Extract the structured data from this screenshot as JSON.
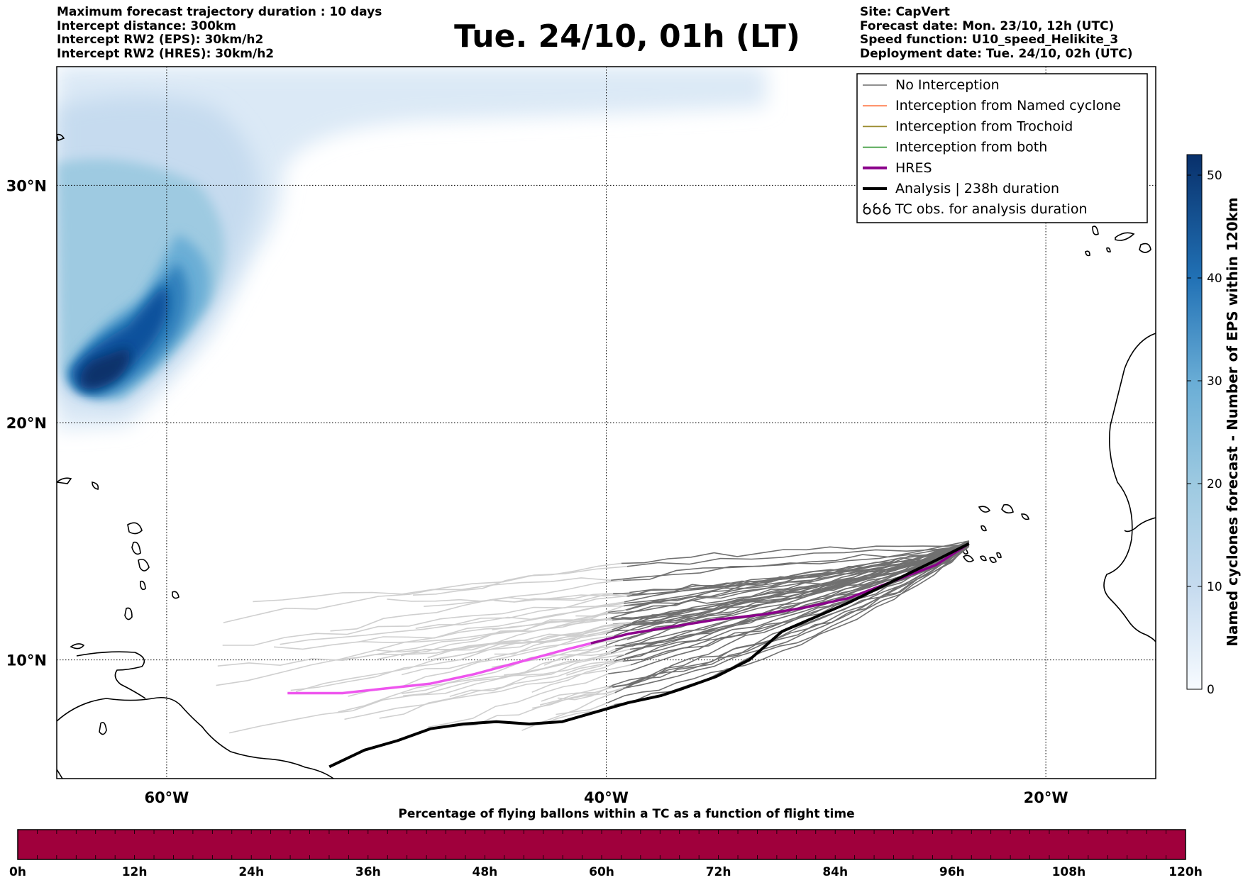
{
  "header_left": [
    "Maximum forecast trajectory duration : 10 days",
    "Intercept distance: 300km",
    "Intercept RW2 (EPS):  30km/h2",
    "Intercept RW2 (HRES): 30km/h2"
  ],
  "title": "Tue. 24/10, 01h (LT)",
  "header_right": [
    "Site: CapVert",
    "Forecast date: Mon. 23/10, 12h (UTC)",
    "Speed function: U10_speed_Helikite_3",
    "Deployment date: Tue. 24/10, 02h (UTC)"
  ],
  "map": {
    "lon_range": [
      -65,
      -15
    ],
    "lat_range": [
      5,
      35
    ],
    "lon_ticks": [
      -60,
      -40,
      -20
    ],
    "lon_tick_labels": [
      "60°W",
      "40°W",
      "20°W"
    ],
    "lat_ticks": [
      10,
      20,
      30
    ],
    "lat_tick_labels": [
      "10°N",
      "20°N",
      "30°N"
    ],
    "grid": "dotted",
    "launch_site": {
      "lon": -23.5,
      "lat": 14.9
    }
  },
  "legend": {
    "placement": "top-right",
    "items": [
      {
        "label": "No Interception",
        "color": "#808080",
        "style": "thin"
      },
      {
        "label": "Interception from Named cyclone",
        "color": "#ff7f50",
        "style": "thin"
      },
      {
        "label": "Interception from Trochoid",
        "color": "#9a8b2e",
        "style": "thin"
      },
      {
        "label": "Interception from both",
        "color": "#3a9a3a",
        "style": "thin"
      },
      {
        "label": "HRES",
        "color": "#8b008b",
        "style": "thick"
      },
      {
        "label": "Analysis | 238h duration",
        "color": "#000000",
        "style": "thick"
      },
      {
        "label": "TC obs. for analysis duration",
        "color": "#000000",
        "style": "cyclone-symbols"
      }
    ]
  },
  "tracks": {
    "analysis": {
      "color": "#000000",
      "points": [
        [
          -23.5,
          14.9
        ],
        [
          -25,
          14.2
        ],
        [
          -27,
          13.3
        ],
        [
          -29,
          12.4
        ],
        [
          -30.5,
          11.8
        ],
        [
          -32,
          11.2
        ],
        [
          -33.5,
          10.0
        ],
        [
          -35,
          9.3
        ],
        [
          -36.5,
          8.8
        ],
        [
          -37.5,
          8.5
        ],
        [
          -39,
          8.2
        ],
        [
          -40.5,
          7.8
        ],
        [
          -42,
          7.4
        ],
        [
          -43.5,
          7.3
        ],
        [
          -45,
          7.4
        ],
        [
          -46.5,
          7.3
        ],
        [
          -48,
          7.1
        ],
        [
          -49.5,
          6.6
        ],
        [
          -51,
          6.2
        ],
        [
          -52.6,
          5.5
        ]
      ]
    },
    "hres": {
      "color": "#8b008b",
      "faded_color": "#ee55ee",
      "points": [
        [
          -23.5,
          14.9
        ],
        [
          -25,
          14.0
        ],
        [
          -27,
          13.3
        ],
        [
          -29,
          12.6
        ],
        [
          -31,
          12.2
        ],
        [
          -33,
          11.9
        ],
        [
          -35,
          11.7
        ],
        [
          -37,
          11.4
        ],
        [
          -39,
          11.1
        ],
        [
          -40.7,
          10.7
        ],
        [
          -42,
          10.4
        ],
        [
          -44,
          9.9
        ],
        [
          -46,
          9.4
        ],
        [
          -48,
          9.0
        ],
        [
          -50,
          8.8
        ],
        [
          -52,
          8.6
        ],
        [
          -54.5,
          8.6
        ]
      ]
    },
    "ensemble_count": 50,
    "ensemble_color_near": "#707070",
    "ensemble_color_far": "#cfcfcf"
  },
  "density": {
    "label": "Named cyclones forecast - Number of EPS within 120km",
    "ticks": [
      0,
      10,
      20,
      30,
      40,
      50
    ],
    "max": 52,
    "colors": [
      "#eef5fb",
      "#c6dbef",
      "#9ecae1",
      "#6baed6",
      "#3182bd",
      "#08519c",
      "#08306b"
    ]
  },
  "time_bar": {
    "title": "Percentage of flying ballons within a TC as a function of flight time",
    "color": "#a0003c",
    "ticks": [
      "0h",
      "12h",
      "24h",
      "36h",
      "48h",
      "60h",
      "72h",
      "84h",
      "96h",
      "108h",
      "120h"
    ]
  }
}
